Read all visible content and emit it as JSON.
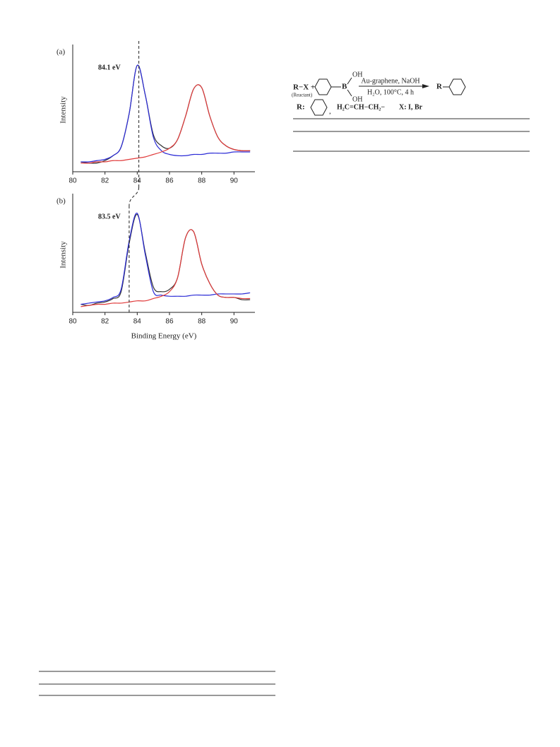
{
  "chart_data": [
    {
      "type": "line",
      "panel_label": "(a)",
      "annotation": "84.1 eV",
      "vline": 84.1,
      "y_label": "Intensity",
      "xlim": [
        80,
        91.3
      ],
      "ylim": [
        0,
        100
      ],
      "xticks": [
        80,
        82,
        84,
        86,
        88,
        90
      ],
      "x": [
        80.5,
        81,
        81.5,
        82,
        82.5,
        83,
        83.5,
        84,
        84.5,
        85,
        85.5,
        86,
        86.5,
        87,
        87.5,
        88,
        88.5,
        89,
        89.5,
        90,
        90.5,
        91
      ],
      "series": [
        {
          "color": "#333333",
          "values": [
            8,
            7,
            7,
            9,
            13,
            20,
            47,
            86,
            62,
            30,
            21,
            19,
            26,
            45,
            67,
            68,
            45,
            28,
            21,
            18,
            17,
            17
          ]
        },
        {
          "color": "#2b2bd6",
          "values": [
            8,
            8,
            9,
            10,
            13,
            20,
            47,
            86,
            62,
            28,
            17,
            14,
            13,
            13,
            14,
            14,
            15,
            15,
            15,
            16,
            16,
            16
          ]
        },
        {
          "color": "#e03a3a",
          "values": [
            7,
            7,
            8,
            8,
            9,
            9,
            10,
            11,
            12,
            14,
            16,
            19,
            26,
            45,
            67,
            68,
            45,
            28,
            21,
            18,
            17,
            17
          ]
        }
      ]
    },
    {
      "type": "line",
      "panel_label": "(b)",
      "annotation": "83.5 eV",
      "vline": 83.5,
      "y_label": "Intensity",
      "x_label": "Binding Energy (eV)",
      "xlim": [
        80,
        91.3
      ],
      "ylim": [
        0,
        100
      ],
      "xticks": [
        80,
        82,
        84,
        86,
        88,
        90
      ],
      "x": [
        80.5,
        81,
        81.5,
        82,
        82.5,
        83,
        83.5,
        84,
        84.5,
        85,
        85.5,
        86,
        86.5,
        87,
        87.5,
        88,
        88.5,
        89,
        89.5,
        90,
        90.5,
        91
      ],
      "series": [
        {
          "color": "#333333",
          "values": [
            7,
            6,
            8,
            9,
            12,
            18,
            60,
            85,
            52,
            22,
            18,
            20,
            30,
            65,
            70,
            42,
            25,
            15,
            13,
            13,
            11,
            11
          ]
        },
        {
          "color": "#2b2bd6",
          "values": [
            7,
            8,
            9,
            10,
            13,
            20,
            62,
            86,
            50,
            18,
            15,
            14,
            14,
            14,
            15,
            15,
            15,
            16,
            16,
            16,
            16,
            17
          ]
        },
        {
          "color": "#e03a3a",
          "values": [
            5,
            6,
            7,
            7,
            8,
            8,
            9,
            10,
            10,
            12,
            14,
            18,
            30,
            65,
            70,
            42,
            25,
            15,
            13,
            13,
            12,
            12
          ]
        }
      ]
    }
  ],
  "scheme": {
    "reactant": "R−X +",
    "reactant_note": "(Reactant)",
    "oh_top": "OH",
    "boron": "B",
    "oh_bottom": "OH",
    "conditions_top": "Au-graphene, NaOH",
    "conditions_bottom": "H₂O, 100°C, 4 h",
    "product": "R",
    "r_def": "R:",
    "comma": ",",
    "allyl": "H₂C=CH−CH₂−",
    "x_def": "X: I, Br"
  }
}
